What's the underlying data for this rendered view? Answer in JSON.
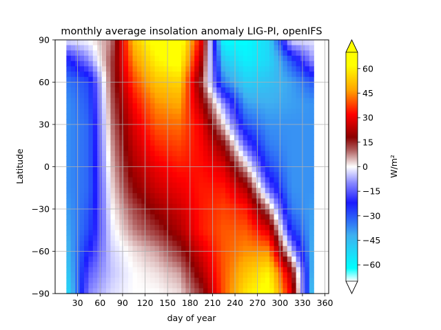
{
  "chart_data": {
    "type": "heatmap",
    "title": "monthly average insolation anomaly LIG-PI, openIFS",
    "xlabel": "day of year",
    "ylabel": "Latitude",
    "xlim": [
      0,
      365
    ],
    "ylim": [
      -90,
      90
    ],
    "xticks": [
      30,
      60,
      90,
      120,
      150,
      180,
      210,
      240,
      270,
      300,
      330,
      360
    ],
    "yticks": [
      90,
      60,
      30,
      0,
      -30,
      -60,
      -90
    ],
    "grid": true,
    "months_x": [
      15,
      45,
      75,
      105,
      135,
      165,
      195,
      225,
      255,
      285,
      315,
      345
    ],
    "lat_y": [
      90,
      75,
      60,
      45,
      30,
      15,
      0,
      -15,
      -30,
      -45,
      -60,
      -75,
      -90
    ],
    "values": [
      [
        -2,
        0,
        8,
        52,
        66,
        70,
        30,
        -62,
        -62,
        -52,
        -2,
        -2
      ],
      [
        -25,
        -10,
        12,
        45,
        60,
        65,
        22,
        -48,
        -58,
        -52,
        -30,
        -8
      ],
      [
        -35,
        -28,
        12,
        38,
        52,
        55,
        14,
        -35,
        -50,
        -46,
        -40,
        -30
      ],
      [
        -38,
        -30,
        10,
        32,
        45,
        48,
        22,
        -10,
        -40,
        -42,
        -40,
        -38
      ],
      [
        -38,
        -32,
        8,
        28,
        40,
        42,
        30,
        2,
        -30,
        -38,
        -38,
        -38
      ],
      [
        -38,
        -32,
        6,
        25,
        35,
        38,
        32,
        18,
        -15,
        -35,
        -38,
        -38
      ],
      [
        -38,
        -32,
        4,
        22,
        30,
        34,
        33,
        28,
        4,
        -28,
        -38,
        -38
      ],
      [
        -38,
        -32,
        2,
        18,
        26,
        30,
        34,
        34,
        22,
        -15,
        -38,
        -38
      ],
      [
        -40,
        -30,
        0,
        12,
        20,
        26,
        34,
        38,
        34,
        8,
        -35,
        -40
      ],
      [
        -42,
        -28,
        -2,
        8,
        14,
        22,
        34,
        40,
        40,
        28,
        -25,
        -42
      ],
      [
        -45,
        -22,
        -4,
        2,
        6,
        14,
        28,
        40,
        45,
        45,
        -5,
        -45
      ],
      [
        -50,
        -15,
        -5,
        0,
        2,
        6,
        22,
        40,
        52,
        60,
        22,
        -48
      ],
      [
        -55,
        -10,
        -3,
        0,
        0,
        2,
        14,
        40,
        58,
        66,
        30,
        -52
      ]
    ],
    "colorbar": {
      "label": "W/m²",
      "ticks": [
        60,
        45,
        30,
        15,
        0,
        -15,
        -30,
        -45,
        -60
      ],
      "range": [
        -70,
        70
      ],
      "extend": "both",
      "colors": [
        {
          "v": -70,
          "c": "#ffffff"
        },
        {
          "v": -62,
          "c": "#00ffff"
        },
        {
          "v": -42,
          "c": "#3fb0f0"
        },
        {
          "v": -22,
          "c": "#1a1aff"
        },
        {
          "v": -10,
          "c": "#8888ff"
        },
        {
          "v": 0,
          "c": "#ffffff"
        },
        {
          "v": 10,
          "c": "#b06060"
        },
        {
          "v": 18,
          "c": "#8b0000"
        },
        {
          "v": 32,
          "c": "#ff0000"
        },
        {
          "v": 47,
          "c": "#ffa500"
        },
        {
          "v": 62,
          "c": "#ffff00"
        },
        {
          "v": 70,
          "c": "#ffff00"
        }
      ]
    }
  }
}
